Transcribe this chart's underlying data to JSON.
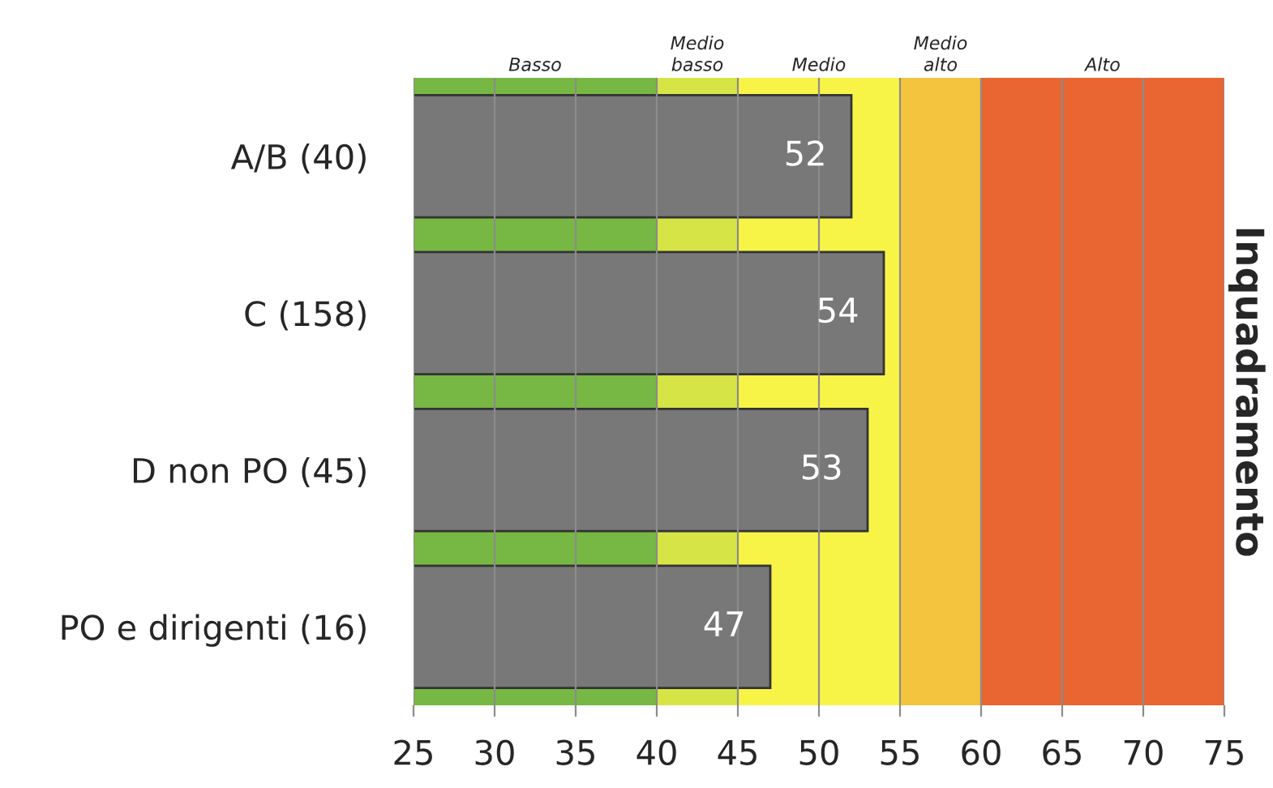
{
  "chart_data": {
    "type": "bar",
    "orientation": "horizontal",
    "ylabel": "Inquadramento",
    "categories": [
      "A/B (40)",
      "C (158)",
      "D non PO (45)",
      "PO e dirigenti (16)"
    ],
    "series": [
      {
        "color": "#787878",
        "values": [
          52,
          54,
          53,
          47
        ]
      }
    ],
    "data_labels": true,
    "xlim": [
      25,
      75
    ],
    "xticks": [
      25,
      30,
      35,
      40,
      45,
      50,
      55,
      60,
      65,
      70,
      75
    ],
    "grid": "x",
    "bands": [
      {
        "axis": "x",
        "from": 25,
        "to": 40,
        "label": "Basso",
        "color": "#76b843"
      },
      {
        "axis": "x",
        "from": 40,
        "to": 45,
        "label": "Medio\nbasso",
        "color": "#d6e545"
      },
      {
        "axis": "x",
        "from": 45,
        "to": 55,
        "label": "Medio",
        "color": "#f8f447"
      },
      {
        "axis": "x",
        "from": 55,
        "to": 60,
        "label": "Medio\nalto",
        "color": "#f5c43e"
      },
      {
        "axis": "x",
        "from": 60,
        "to": 75,
        "label": "Alto",
        "color": "#e96532"
      }
    ]
  }
}
